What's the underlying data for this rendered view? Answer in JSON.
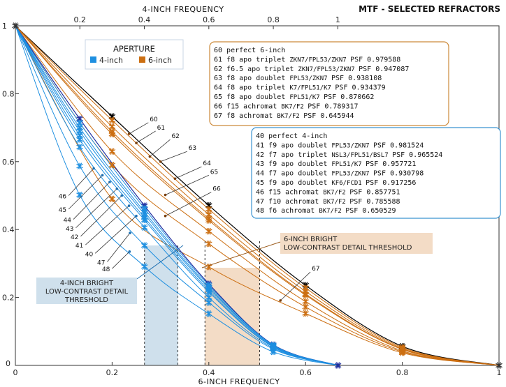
{
  "chart_data": {
    "type": "line",
    "title": "MTF - SELECTED REFRACTORS",
    "x_bottom_label": "6-INCH FREQUENCY",
    "x_top_label": "4-INCH FREQUENCY",
    "x_bottom_ticks": [
      "0",
      "0.2",
      "0.4",
      "0.6",
      "0.8",
      "1"
    ],
    "x_bottom_values": [
      0,
      0.2,
      0.4,
      0.6,
      0.8,
      1
    ],
    "x_top_ticks": [
      "0.2",
      "0.4",
      "0.6",
      "0.8",
      "1"
    ],
    "x_top_values": [
      0.2,
      0.4,
      0.6,
      0.8,
      1
    ],
    "y_ticks": [
      "0",
      "0.2",
      "0.4",
      "0.6",
      "0.8",
      "1"
    ],
    "y_values": [
      0,
      0.2,
      0.4,
      0.6,
      0.8,
      1
    ],
    "xlim": [
      0,
      1
    ],
    "ylim": [
      0,
      1
    ],
    "legend": {
      "title": "APERTURE",
      "items": [
        {
          "name": "4-inch",
          "color": "#1e8fe0"
        },
        {
          "name": "6-inch",
          "color": "#cc6f12"
        }
      ]
    },
    "series_6inch": [
      {
        "id": "60",
        "label": "perfect 6-inch",
        "design": "",
        "psf": "",
        "color": "#000000",
        "points": [
          [
            0,
            1
          ],
          [
            0.2,
            0.733
          ],
          [
            0.4,
            0.471
          ],
          [
            0.6,
            0.236
          ],
          [
            0.8,
            0.056
          ],
          [
            1,
            0
          ]
        ]
      },
      {
        "id": "61",
        "label": "f8 apo triplet",
        "design": "ZKN7/FPL53/ZKN7",
        "psf": "PSF 0.979588",
        "color": "#cc6f12",
        "points": [
          [
            0,
            1
          ],
          [
            0.2,
            0.722
          ],
          [
            0.4,
            0.46
          ],
          [
            0.6,
            0.228
          ],
          [
            0.8,
            0.053
          ],
          [
            1,
            0
          ]
        ]
      },
      {
        "id": "62",
        "label": "f6.5 apo triplet",
        "design": "ZKN7/FPL53/ZKN7",
        "psf": "PSF 0.947087",
        "color": "#cc6f12",
        "points": [
          [
            0,
            1
          ],
          [
            0.2,
            0.703
          ],
          [
            0.4,
            0.444
          ],
          [
            0.6,
            0.218
          ],
          [
            0.8,
            0.05
          ],
          [
            1,
            0
          ]
        ]
      },
      {
        "id": "63",
        "label": "f8 apo doublet",
        "design": "FPL53/ZKN7",
        "psf": "PSF 0.938108",
        "color": "#cc6f12",
        "points": [
          [
            0,
            1
          ],
          [
            0.2,
            0.688
          ],
          [
            0.4,
            0.432
          ],
          [
            0.6,
            0.21
          ],
          [
            0.8,
            0.048
          ],
          [
            1,
            0
          ]
        ]
      },
      {
        "id": "64",
        "label": "f8 apo triplet",
        "design": "K7/FPL51/K7",
        "psf": "PSF 0.934379",
        "color": "#cc6f12",
        "points": [
          [
            0,
            1
          ],
          [
            0.2,
            0.681
          ],
          [
            0.4,
            0.427
          ],
          [
            0.6,
            0.207
          ],
          [
            0.8,
            0.047
          ],
          [
            1,
            0
          ]
        ]
      },
      {
        "id": "65",
        "label": "f8 apo doublet",
        "design": "FPL51/K7",
        "psf": "PSF 0.870662",
        "color": "#cc6f12",
        "points": [
          [
            0,
            1
          ],
          [
            0.2,
            0.63
          ],
          [
            0.4,
            0.395
          ],
          [
            0.6,
            0.188
          ],
          [
            0.8,
            0.043
          ],
          [
            1,
            0
          ]
        ]
      },
      {
        "id": "66",
        "label": "f15 achromat",
        "design": "BK7/F2",
        "psf": "PSF 0.789317",
        "color": "#cc6f12",
        "points": [
          [
            0,
            1
          ],
          [
            0.2,
            0.59
          ],
          [
            0.4,
            0.358
          ],
          [
            0.6,
            0.172
          ],
          [
            0.8,
            0.04
          ],
          [
            1,
            0
          ]
        ]
      },
      {
        "id": "67",
        "label": "f8 achromat",
        "design": "BK7/F2",
        "psf": "PSF 0.645944",
        "color": "#cc6f12",
        "points": [
          [
            0,
            1
          ],
          [
            0.2,
            0.49
          ],
          [
            0.4,
            0.29
          ],
          [
            0.6,
            0.153
          ],
          [
            0.8,
            0.037
          ],
          [
            1,
            0
          ]
        ]
      }
    ],
    "series_4inch": [
      {
        "id": "40",
        "label": "perfect 4-inch",
        "design": "",
        "psf": "",
        "color": "#1f2fa0",
        "points": [
          [
            0,
            1
          ],
          [
            0.133,
            0.726
          ],
          [
            0.267,
            0.47
          ],
          [
            0.4,
            0.24
          ],
          [
            0.533,
            0.061
          ],
          [
            0.667,
            0
          ]
        ]
      },
      {
        "id": "41",
        "label": "f9 apo doublet",
        "design": "FPL53/ZKN7",
        "psf": "PSF 0.981524",
        "color": "#1e8fe0",
        "points": [
          [
            0,
            1
          ],
          [
            0.133,
            0.714
          ],
          [
            0.267,
            0.462
          ],
          [
            0.4,
            0.236
          ],
          [
            0.533,
            0.06
          ],
          [
            0.667,
            0
          ]
        ]
      },
      {
        "id": "42",
        "label": "f7 apo triplet",
        "design": "NSL3/FPL51/BSL7",
        "psf": "PSF 0.965524",
        "color": "#1e8fe0",
        "points": [
          [
            0,
            1
          ],
          [
            0.133,
            0.7
          ],
          [
            0.267,
            0.452
          ],
          [
            0.4,
            0.231
          ],
          [
            0.533,
            0.058
          ],
          [
            0.667,
            0
          ]
        ]
      },
      {
        "id": "43",
        "label": "f9 apo doublet",
        "design": "FPL51/K7",
        "psf": "PSF 0.957721",
        "color": "#1e8fe0",
        "points": [
          [
            0,
            1
          ],
          [
            0.133,
            0.69
          ],
          [
            0.267,
            0.445
          ],
          [
            0.4,
            0.227
          ],
          [
            0.533,
            0.057
          ],
          [
            0.667,
            0
          ]
        ]
      },
      {
        "id": "44",
        "label": "f7 apo doublet",
        "design": "FPL53/ZKN7",
        "psf": "PSF 0.930798",
        "color": "#1e8fe0",
        "points": [
          [
            0,
            1
          ],
          [
            0.133,
            0.677
          ],
          [
            0.267,
            0.435
          ],
          [
            0.4,
            0.221
          ],
          [
            0.533,
            0.055
          ],
          [
            0.667,
            0
          ]
        ]
      },
      {
        "id": "45",
        "label": "f9 apo doublet",
        "design": "KF6/FCD1",
        "psf": "PSF 0.917256",
        "color": "#1e8fe0",
        "points": [
          [
            0,
            1
          ],
          [
            0.133,
            0.665
          ],
          [
            0.267,
            0.428
          ],
          [
            0.4,
            0.216
          ],
          [
            0.533,
            0.054
          ],
          [
            0.667,
            0
          ]
        ]
      },
      {
        "id": "46",
        "label": "f15 achromat",
        "design": "BK7/F2",
        "psf": "PSF 0.857751",
        "color": "#1e8fe0",
        "points": [
          [
            0,
            1
          ],
          [
            0.133,
            0.643
          ],
          [
            0.267,
            0.406
          ],
          [
            0.4,
            0.2
          ],
          [
            0.533,
            0.051
          ],
          [
            0.667,
            0
          ]
        ]
      },
      {
        "id": "47",
        "label": "f10 achromat",
        "design": "BK7/F2",
        "psf": "PSF 0.785588",
        "color": "#1e8fe0",
        "points": [
          [
            0,
            1
          ],
          [
            0.133,
            0.587
          ],
          [
            0.267,
            0.353
          ],
          [
            0.4,
            0.185
          ],
          [
            0.533,
            0.048
          ],
          [
            0.667,
            0
          ]
        ]
      },
      {
        "id": "48",
        "label": "f6 achromat",
        "design": "BK7/F2",
        "psf": "PSF 0.650529",
        "color": "#1e8fe0",
        "points": [
          [
            0,
            1
          ],
          [
            0.133,
            0.502
          ],
          [
            0.267,
            0.291
          ],
          [
            0.4,
            0.152
          ],
          [
            0.533,
            0.04
          ],
          [
            0.667,
            0
          ]
        ]
      }
    ],
    "annotations": {
      "threshold_4inch": [
        "4-INCH BRIGHT",
        "LOW-CONTRAST DETAIL",
        "THRESHOLD"
      ],
      "threshold_6inch": [
        "6-INCH BRIGHT",
        "LOW-CONTRAST DETAIL THRESHOLD"
      ],
      "threshold_4inch_range": [
        0.267,
        0.336
      ],
      "threshold_6inch_range": [
        0.392,
        0.505
      ]
    },
    "colors": {
      "six_inch": "#cc6f12",
      "four_inch": "#1e8fe0",
      "perfect6": "#000000",
      "perfect4": "#1f2fa0",
      "band4": "#cfe0ec",
      "band6": "#f3dcc6"
    }
  }
}
